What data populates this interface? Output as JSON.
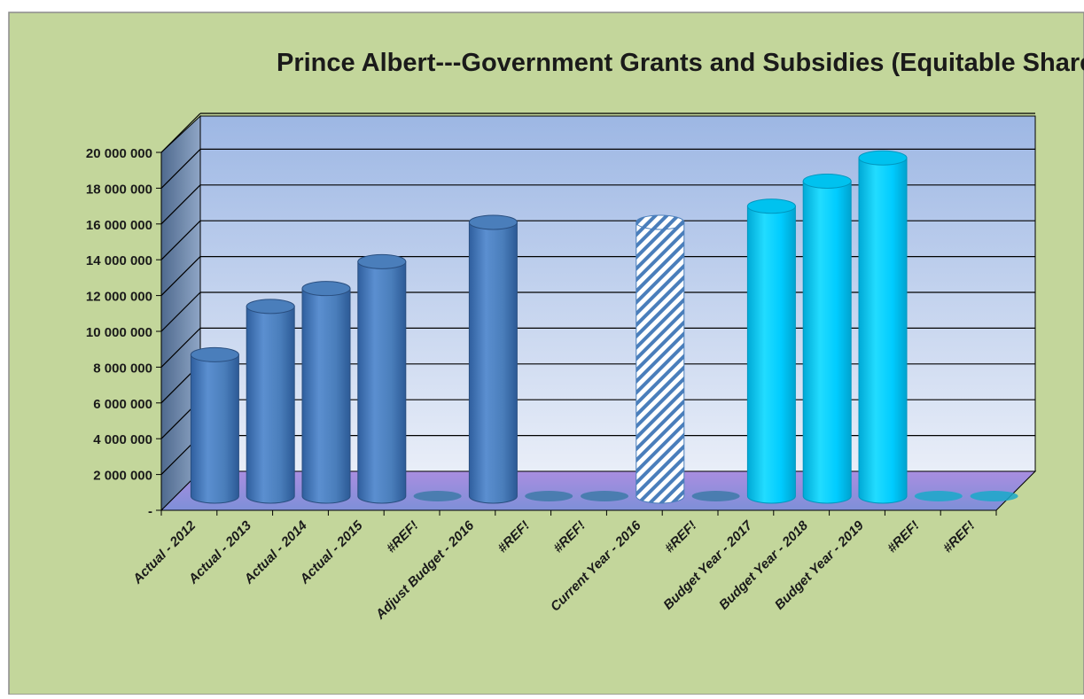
{
  "chart_data": {
    "type": "bar",
    "title": "Prince Albert---Government Grants and Subsidies (Equitable Share)",
    "xlabel": "",
    "ylabel": "",
    "ylim": [
      0,
      20000000
    ],
    "yticks": [
      "-",
      "2 000 000",
      "4 000 000",
      "6 000 000",
      "8 000 000",
      "10 000 000",
      "12 000 000",
      "14 000 000",
      "16 000 000",
      "18 000 000",
      "20 000 000"
    ],
    "grid": true,
    "categories": [
      "Actual  - 2012",
      "Actual  - 2013",
      "Actual  - 2014",
      "Actual  - 2015",
      "#REF!",
      "Adjust Budget - 2016",
      "#REF!",
      "#REF!",
      "Current Year - 2016",
      "#REF!",
      "Budget Year  - 2017",
      "Budget Year  - 2018",
      "Budget Year  - 2019",
      "#REF!",
      "#REF!"
    ],
    "values": [
      7900000,
      10600000,
      11600000,
      13100000,
      0,
      15300000,
      0,
      0,
      15300000,
      0,
      16200000,
      17600000,
      18900000,
      0,
      0
    ],
    "styles": [
      "actual",
      "actual",
      "actual",
      "actual",
      "ref-actual",
      "actual",
      "ref-actual",
      "ref-actual",
      "current",
      "ref-actual",
      "budget",
      "budget",
      "budget",
      "ref-budget",
      "ref-budget"
    ],
    "colors": {
      "actual": "#4a7ebb",
      "budget": "#00ccff",
      "current_stripe": "#4a7ebb",
      "plot_back": "#a7bfe6",
      "floor": "#9b8bd6",
      "side_wall": "#6d86a8",
      "outer_background": "#c3d69b"
    }
  }
}
